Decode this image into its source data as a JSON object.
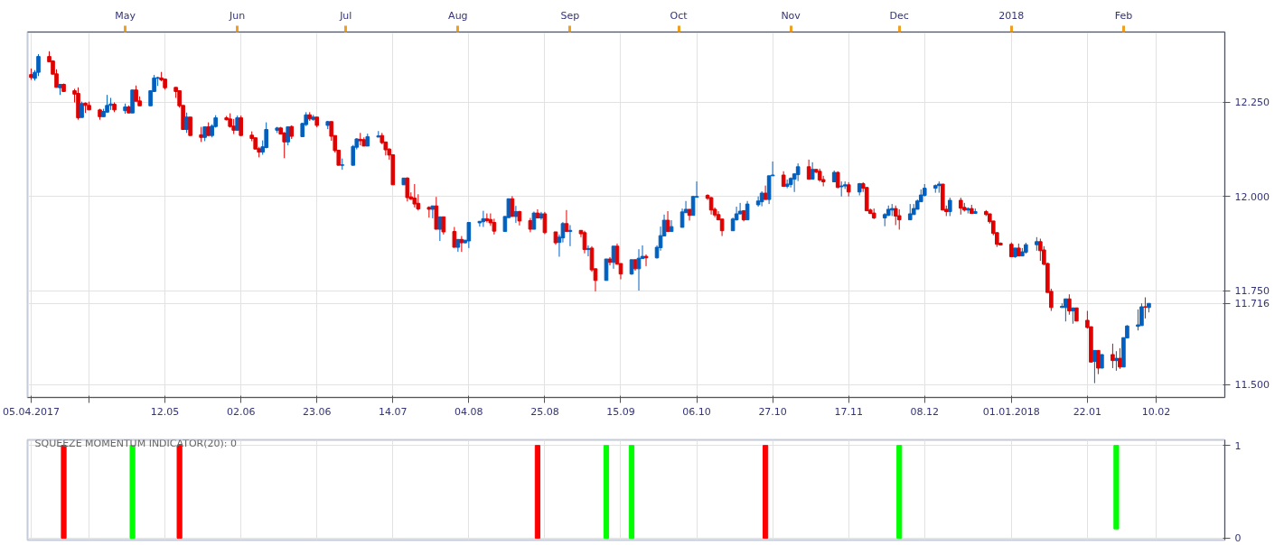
{
  "chart_data": [
    {
      "type": "candlestick",
      "x": [
        "2017-04-05",
        "2017-04-06",
        "2017-04-07",
        "2017-04-10",
        "2017-04-11",
        "2017-04-12",
        "2017-04-13",
        "2017-04-14",
        "2017-04-17",
        "2017-04-18",
        "2017-04-19",
        "2017-04-20",
        "2017-04-21",
        "2017-04-24",
        "2017-04-25",
        "2017-04-26",
        "2017-04-27",
        "2017-04-28",
        "2017-05-01",
        "2017-05-02",
        "2017-05-03",
        "2017-05-04",
        "2017-05-05",
        "2017-05-08",
        "2017-05-09",
        "2017-05-10",
        "2017-05-11",
        "2017-05-12",
        "2017-05-15",
        "2017-05-16",
        "2017-05-17",
        "2017-05-18",
        "2017-05-19",
        "2017-05-22",
        "2017-05-23",
        "2017-05-24",
        "2017-05-25",
        "2017-05-26",
        "2017-05-29",
        "2017-05-30",
        "2017-05-31",
        "2017-06-01",
        "2017-06-02",
        "2017-06-05",
        "2017-06-06",
        "2017-06-07",
        "2017-06-08",
        "2017-06-09",
        "2017-06-12",
        "2017-06-13",
        "2017-06-14",
        "2017-06-15",
        "2017-06-16",
        "2017-06-19",
        "2017-06-20",
        "2017-06-21",
        "2017-06-22",
        "2017-06-23",
        "2017-06-26",
        "2017-06-27",
        "2017-06-28",
        "2017-06-29",
        "2017-06-30",
        "2017-07-03",
        "2017-07-04",
        "2017-07-05",
        "2017-07-06",
        "2017-07-07",
        "2017-07-10",
        "2017-07-11",
        "2017-07-12",
        "2017-07-13",
        "2017-07-14",
        "2017-07-17",
        "2017-07-18",
        "2017-07-19",
        "2017-07-20",
        "2017-07-21",
        "2017-07-24",
        "2017-07-25",
        "2017-07-26",
        "2017-07-27",
        "2017-07-28",
        "2017-07-31",
        "2017-08-01",
        "2017-08-02",
        "2017-08-03",
        "2017-08-04",
        "2017-08-07",
        "2017-08-08",
        "2017-08-09",
        "2017-08-10",
        "2017-08-11",
        "2017-08-14",
        "2017-08-15",
        "2017-08-16",
        "2017-08-17",
        "2017-08-18",
        "2017-08-21",
        "2017-08-22",
        "2017-08-23",
        "2017-08-24",
        "2017-08-25",
        "2017-08-28",
        "2017-08-29",
        "2017-08-30",
        "2017-08-31",
        "2017-09-01",
        "2017-09-04",
        "2017-09-05",
        "2017-09-06",
        "2017-09-07",
        "2017-09-08",
        "2017-09-11",
        "2017-09-12",
        "2017-09-13",
        "2017-09-14",
        "2017-09-15",
        "2017-09-18",
        "2017-09-19",
        "2017-09-20",
        "2017-09-21",
        "2017-09-22",
        "2017-09-25",
        "2017-09-26",
        "2017-09-27",
        "2017-09-28",
        "2017-09-29",
        "2017-10-02",
        "2017-10-03",
        "2017-10-04",
        "2017-10-05",
        "2017-10-06",
        "2017-10-09",
        "2017-10-10",
        "2017-10-11",
        "2017-10-12",
        "2017-10-13",
        "2017-10-16",
        "2017-10-17",
        "2017-10-18",
        "2017-10-19",
        "2017-10-20",
        "2017-10-23",
        "2017-10-24",
        "2017-10-25",
        "2017-10-26",
        "2017-10-27",
        "2017-10-30",
        "2017-10-31",
        "2017-11-01",
        "2017-11-02",
        "2017-11-03",
        "2017-11-06",
        "2017-11-07",
        "2017-11-08",
        "2017-11-09",
        "2017-11-10",
        "2017-11-13",
        "2017-11-14",
        "2017-11-15",
        "2017-11-16",
        "2017-11-17",
        "2017-11-20",
        "2017-11-21",
        "2017-11-22",
        "2017-11-23",
        "2017-11-24",
        "2017-11-27",
        "2017-11-28",
        "2017-11-29",
        "2017-11-30",
        "2017-12-01",
        "2017-12-04",
        "2017-12-05",
        "2017-12-06",
        "2017-12-07",
        "2017-12-08",
        "2017-12-11",
        "2017-12-12",
        "2017-12-13",
        "2017-12-14",
        "2017-12-15",
        "2017-12-18",
        "2017-12-19",
        "2017-12-20",
        "2017-12-21",
        "2017-12-22",
        "2017-12-25",
        "2017-12-26",
        "2017-12-27",
        "2017-12-28",
        "2017-12-29",
        "2018-01-01",
        "2018-01-02",
        "2018-01-03",
        "2018-01-04",
        "2018-01-05",
        "2018-01-08",
        "2018-01-09",
        "2018-01-10",
        "2018-01-11",
        "2018-01-12",
        "2018-01-15",
        "2018-01-16",
        "2018-01-17",
        "2018-01-18",
        "2018-01-19",
        "2018-01-22",
        "2018-01-23",
        "2018-01-24",
        "2018-01-25",
        "2018-01-26",
        "2018-01-29",
        "2018-01-30",
        "2018-01-31",
        "2018-02-01",
        "2018-02-02",
        "2018-02-05",
        "2018-02-06",
        "2018-02-07",
        "2018-02-08"
      ],
      "ohlc": [
        [
          12.324,
          12.34,
          12.31,
          12.316
        ],
        [
          12.314,
          12.336,
          12.308,
          12.33
        ],
        [
          12.33,
          12.378,
          12.32,
          12.372
        ],
        [
          12.372,
          12.386,
          12.358,
          12.358
        ],
        [
          12.36,
          12.362,
          12.325,
          12.325
        ],
        [
          12.326,
          12.338,
          12.29,
          12.29
        ],
        [
          12.289,
          12.298,
          12.27,
          12.298
        ],
        [
          12.298,
          12.3,
          12.279,
          12.279
        ],
        [
          12.281,
          12.286,
          12.25,
          12.272
        ],
        [
          12.274,
          12.29,
          12.204,
          12.209
        ],
        [
          12.21,
          12.252,
          12.21,
          12.247
        ],
        [
          12.248,
          12.25,
          12.222,
          12.242
        ],
        [
          12.242,
          12.252,
          12.23,
          12.23
        ],
        [
          12.23,
          12.233,
          12.204,
          12.212
        ],
        [
          12.212,
          12.233,
          12.212,
          12.226
        ],
        [
          12.224,
          12.27,
          12.224,
          12.242
        ],
        [
          12.242,
          12.262,
          12.23,
          12.246
        ],
        [
          12.245,
          12.25,
          12.224,
          12.23
        ],
        [
          12.228,
          12.247,
          12.22,
          12.238
        ],
        [
          12.238,
          12.242,
          12.222,
          12.222
        ],
        [
          12.222,
          12.283,
          12.222,
          12.283
        ],
        [
          12.283,
          12.295,
          12.253,
          12.253
        ],
        [
          12.254,
          12.266,
          12.241,
          12.241
        ],
        [
          12.241,
          12.281,
          12.241,
          12.281
        ],
        [
          12.279,
          12.323,
          12.278,
          12.315
        ],
        [
          12.314,
          12.318,
          12.294,
          12.316
        ],
        [
          12.315,
          12.331,
          12.306,
          12.31
        ],
        [
          12.312,
          12.312,
          12.284,
          12.289
        ],
        [
          12.29,
          12.29,
          12.262,
          12.279
        ],
        [
          12.281,
          12.281,
          12.236,
          12.241
        ],
        [
          12.242,
          12.242,
          12.178,
          12.178
        ],
        [
          12.178,
          12.223,
          12.169,
          12.211
        ],
        [
          12.211,
          12.211,
          12.162,
          12.162
        ],
        [
          12.164,
          12.185,
          12.145,
          12.157
        ],
        [
          12.157,
          12.185,
          12.147,
          12.185
        ],
        [
          12.185,
          12.197,
          12.162,
          12.162
        ],
        [
          12.162,
          12.192,
          12.157,
          12.187
        ],
        [
          12.186,
          12.216,
          12.183,
          12.209
        ],
        [
          12.209,
          12.214,
          12.202,
          12.204
        ],
        [
          12.206,
          12.221,
          12.183,
          12.186
        ],
        [
          12.187,
          12.206,
          12.166,
          12.176
        ],
        [
          12.176,
          12.215,
          12.176,
          12.209
        ],
        [
          12.209,
          12.215,
          12.162,
          12.162
        ],
        [
          12.163,
          12.173,
          12.147,
          12.154
        ],
        [
          12.156,
          12.156,
          12.126,
          12.126
        ],
        [
          12.127,
          12.132,
          12.104,
          12.118
        ],
        [
          12.118,
          12.149,
          12.111,
          12.132
        ],
        [
          12.13,
          12.197,
          12.128,
          12.178
        ],
        [
          12.176,
          12.185,
          12.169,
          12.182
        ],
        [
          12.182,
          12.185,
          12.166,
          12.166
        ],
        [
          12.169,
          12.171,
          12.102,
          12.145
        ],
        [
          12.145,
          12.185,
          12.136,
          12.185
        ],
        [
          12.186,
          12.189,
          12.153,
          12.16
        ],
        [
          12.159,
          12.196,
          12.159,
          12.194
        ],
        [
          12.191,
          12.224,
          12.187,
          12.217
        ],
        [
          12.217,
          12.224,
          12.201,
          12.206
        ],
        [
          12.205,
          12.217,
          12.201,
          12.211
        ],
        [
          12.211,
          12.211,
          12.184,
          12.189
        ],
        [
          12.189,
          12.201,
          12.179,
          12.199
        ],
        [
          12.199,
          12.2,
          12.148,
          12.16
        ],
        [
          12.162,
          12.162,
          12.117,
          12.122
        ],
        [
          12.123,
          12.123,
          12.083,
          12.083
        ],
        [
          12.083,
          12.101,
          12.071,
          12.084
        ],
        [
          12.083,
          12.137,
          12.083,
          12.133
        ],
        [
          12.131,
          12.155,
          12.125,
          12.153
        ],
        [
          12.152,
          12.169,
          12.136,
          12.148
        ],
        [
          12.151,
          12.157,
          12.134,
          12.134
        ],
        [
          12.134,
          12.167,
          12.134,
          12.159
        ],
        [
          12.158,
          12.174,
          12.157,
          12.161
        ],
        [
          12.162,
          12.169,
          12.139,
          12.143
        ],
        [
          12.145,
          12.145,
          12.109,
          12.124
        ],
        [
          12.126,
          12.128,
          12.098,
          12.11
        ],
        [
          12.111,
          12.111,
          12.031,
          12.031
        ],
        [
          12.031,
          12.049,
          12.031,
          12.049
        ],
        [
          12.049,
          12.051,
          11.987,
          11.997
        ],
        [
          11.999,
          12.011,
          11.991,
          11.993
        ],
        [
          11.996,
          12.033,
          11.971,
          11.98
        ],
        [
          11.982,
          12.006,
          11.963,
          11.967
        ],
        [
          11.971,
          11.974,
          11.944,
          11.966
        ],
        [
          11.966,
          11.975,
          11.942,
          11.975
        ],
        [
          11.975,
          11.999,
          11.913,
          11.913
        ],
        [
          11.913,
          11.946,
          11.882,
          11.946
        ],
        [
          11.946,
          11.946,
          11.899,
          11.906
        ],
        [
          11.907,
          11.919,
          11.865,
          11.865
        ],
        [
          11.865,
          11.886,
          11.853,
          11.886
        ],
        [
          11.886,
          11.895,
          11.853,
          11.877
        ],
        [
          11.877,
          11.884,
          11.875,
          11.884
        ],
        [
          11.882,
          11.931,
          11.863,
          11.931
        ],
        [
          11.93,
          11.935,
          11.92,
          11.934
        ],
        [
          11.933,
          11.962,
          11.919,
          11.941
        ],
        [
          11.941,
          11.955,
          11.931,
          11.936
        ],
        [
          11.939,
          11.955,
          11.922,
          11.93
        ],
        [
          11.931,
          11.941,
          11.899,
          11.908
        ],
        [
          11.907,
          11.948,
          11.907,
          11.947
        ],
        [
          11.944,
          11.994,
          11.944,
          11.994
        ],
        [
          11.994,
          12.001,
          11.947,
          11.947
        ],
        [
          11.947,
          11.975,
          11.93,
          11.96
        ],
        [
          11.96,
          11.962,
          11.923,
          11.935
        ],
        [
          11.936,
          11.943,
          11.905,
          11.913
        ],
        [
          11.913,
          11.96,
          11.913,
          11.956
        ],
        [
          11.956,
          11.966,
          11.943,
          11.943
        ],
        [
          11.943,
          11.959,
          11.938,
          11.954
        ],
        [
          11.954,
          11.959,
          11.9,
          11.904
        ],
        [
          11.906,
          11.906,
          11.872,
          11.877
        ],
        [
          11.878,
          11.899,
          11.84,
          11.892
        ],
        [
          11.89,
          11.932,
          11.878,
          11.928
        ],
        [
          11.928,
          11.964,
          11.907,
          11.907
        ],
        [
          11.907,
          11.924,
          11.868,
          11.91
        ],
        [
          11.91,
          11.91,
          11.892,
          11.901
        ],
        [
          11.904,
          11.909,
          11.849,
          11.859
        ],
        [
          11.859,
          11.87,
          11.841,
          11.862
        ],
        [
          11.863,
          11.868,
          11.8,
          11.805
        ],
        [
          11.808,
          11.808,
          11.748,
          11.777
        ],
        [
          11.777,
          11.834,
          11.777,
          11.834
        ],
        [
          11.834,
          11.839,
          11.817,
          11.825
        ],
        [
          11.825,
          11.868,
          11.808,
          11.868
        ],
        [
          11.868,
          11.875,
          11.82,
          11.82
        ],
        [
          11.822,
          11.822,
          11.78,
          11.794
        ],
        [
          11.794,
          11.832,
          11.792,
          11.832
        ],
        [
          11.832,
          11.832,
          11.803,
          11.808
        ],
        [
          11.808,
          11.86,
          11.75,
          11.836
        ],
        [
          11.835,
          11.87,
          11.835,
          11.841
        ],
        [
          11.841,
          11.846,
          11.815,
          11.837
        ],
        [
          11.837,
          11.87,
          11.835,
          11.865
        ],
        [
          11.864,
          11.92,
          11.856,
          11.896
        ],
        [
          11.895,
          11.952,
          11.895,
          11.937
        ],
        [
          11.937,
          11.961,
          11.907,
          11.907
        ],
        [
          11.907,
          11.937,
          11.907,
          11.92
        ],
        [
          11.918,
          11.968,
          11.918,
          11.959
        ],
        [
          11.957,
          11.988,
          11.957,
          11.966
        ],
        [
          11.966,
          11.966,
          11.936,
          11.95
        ],
        [
          11.95,
          12.002,
          11.95,
          12.0
        ],
        [
          11.998,
          12.04,
          11.998,
          12.0
        ],
        [
          12.003,
          12.006,
          11.991,
          11.995
        ],
        [
          11.997,
          11.999,
          11.952,
          11.964
        ],
        [
          11.966,
          11.971,
          11.945,
          11.951
        ],
        [
          11.952,
          11.961,
          11.938,
          11.938
        ],
        [
          11.94,
          11.94,
          11.895,
          11.909
        ],
        [
          11.909,
          11.944,
          11.909,
          11.94
        ],
        [
          11.938,
          11.973,
          11.936,
          11.954
        ],
        [
          11.954,
          11.983,
          11.952,
          11.961
        ],
        [
          11.962,
          11.964,
          11.934,
          11.938
        ],
        [
          11.938,
          11.988,
          11.938,
          11.98
        ],
        [
          11.978,
          12.0,
          11.973,
          11.988
        ],
        [
          11.986,
          12.014,
          11.974,
          12.009
        ],
        [
          12.009,
          12.029,
          11.992,
          11.992
        ],
        [
          11.992,
          12.055,
          11.98,
          12.055
        ],
        [
          12.055,
          12.093,
          12.055,
          12.057
        ],
        [
          12.057,
          12.067,
          12.027,
          12.027
        ],
        [
          12.027,
          12.045,
          12.022,
          12.033
        ],
        [
          12.032,
          12.051,
          12.024,
          12.048
        ],
        [
          12.046,
          12.062,
          12.012,
          12.06
        ],
        [
          12.058,
          12.088,
          12.041,
          12.079
        ],
        [
          12.079,
          12.098,
          12.046,
          12.046
        ],
        [
          12.046,
          12.091,
          12.046,
          12.072
        ],
        [
          12.072,
          12.072,
          12.062,
          12.065
        ],
        [
          12.067,
          12.074,
          12.039,
          12.044
        ],
        [
          12.045,
          12.055,
          12.027,
          12.039
        ],
        [
          12.039,
          12.069,
          12.039,
          12.064
        ],
        [
          12.064,
          12.067,
          12.022,
          12.024
        ],
        [
          12.026,
          12.04,
          12.0,
          12.028
        ],
        [
          12.028,
          12.04,
          12.02,
          12.031
        ],
        [
          12.031,
          12.038,
          12.0,
          12.012
        ],
        [
          12.012,
          12.036,
          12.003,
          12.034
        ],
        [
          12.034,
          12.038,
          12.012,
          12.022
        ],
        [
          12.024,
          12.024,
          11.962,
          11.962
        ],
        [
          11.964,
          11.968,
          11.955,
          11.955
        ],
        [
          11.956,
          11.968,
          11.94,
          11.943
        ],
        [
          11.943,
          11.956,
          11.921,
          11.952
        ],
        [
          11.95,
          11.976,
          11.948,
          11.966
        ],
        [
          11.964,
          11.98,
          11.948,
          11.968
        ],
        [
          11.968,
          11.976,
          11.924,
          11.948
        ],
        [
          11.949,
          11.966,
          11.912,
          11.938
        ],
        [
          11.938,
          11.98,
          11.938,
          11.954
        ],
        [
          11.952,
          11.98,
          11.952,
          11.968
        ],
        [
          11.966,
          11.992,
          11.966,
          11.988
        ],
        [
          11.986,
          12.019,
          11.986,
          12.004
        ],
        [
          12.003,
          12.033,
          12.0,
          12.022
        ],
        [
          12.022,
          12.032,
          12.01,
          12.029
        ],
        [
          12.029,
          12.04,
          12.01,
          12.033
        ],
        [
          12.033,
          12.033,
          11.964,
          11.964
        ],
        [
          11.966,
          11.976,
          11.948,
          11.96
        ],
        [
          11.96,
          11.997,
          11.948,
          11.99
        ],
        [
          11.99,
          11.997,
          11.952,
          11.969
        ],
        [
          11.971,
          11.983,
          11.96,
          11.964
        ],
        [
          11.964,
          11.971,
          11.955,
          11.968
        ],
        [
          11.968,
          11.978,
          11.955,
          11.955
        ],
        [
          11.955,
          11.968,
          11.955,
          11.96
        ],
        [
          11.96,
          11.964,
          11.948,
          11.952
        ],
        [
          11.954,
          11.954,
          11.928,
          11.933
        ],
        [
          11.935,
          11.935,
          11.897,
          11.902
        ],
        [
          11.904,
          11.904,
          11.866,
          11.873
        ],
        [
          11.876,
          11.878,
          11.871,
          11.871
        ],
        [
          11.873,
          11.878,
          11.84,
          11.84
        ],
        [
          11.84,
          11.863,
          11.837,
          11.863
        ],
        [
          11.863,
          11.875,
          11.842,
          11.842
        ],
        [
          11.842,
          11.863,
          11.842,
          11.853
        ],
        [
          11.852,
          11.877,
          11.848,
          11.872
        ],
        [
          11.872,
          11.892,
          11.856,
          11.88
        ],
        [
          11.88,
          11.888,
          11.829,
          11.856
        ],
        [
          11.858,
          11.868,
          11.817,
          11.82
        ],
        [
          11.822,
          11.824,
          11.745,
          11.745
        ],
        [
          11.748,
          11.755,
          11.696,
          11.705
        ],
        [
          11.705,
          11.716,
          11.705,
          11.708
        ],
        [
          11.705,
          11.728,
          11.668,
          11.728
        ],
        [
          11.728,
          11.74,
          11.686,
          11.696
        ],
        [
          11.696,
          11.704,
          11.662,
          11.704
        ],
        [
          11.704,
          11.704,
          11.669,
          11.669
        ],
        [
          11.671,
          11.696,
          11.649,
          11.652
        ],
        [
          11.654,
          11.654,
          11.56,
          11.56
        ],
        [
          11.562,
          11.591,
          11.504,
          11.591
        ],
        [
          11.591,
          11.591,
          11.528,
          11.544
        ],
        [
          11.544,
          11.58,
          11.544,
          11.58
        ],
        [
          11.58,
          11.609,
          11.544,
          11.564
        ],
        [
          11.564,
          11.589,
          11.537,
          11.57
        ],
        [
          11.57,
          11.597,
          11.542,
          11.547
        ],
        [
          11.547,
          11.625,
          11.547,
          11.625
        ],
        [
          11.624,
          11.658,
          11.623,
          11.656
        ],
        [
          11.655,
          11.7,
          11.644,
          11.659
        ],
        [
          11.657,
          11.716,
          11.657,
          11.707
        ],
        [
          11.707,
          11.732,
          11.676,
          11.706
        ],
        [
          11.705,
          11.716,
          11.692,
          11.716
        ]
      ],
      "colors": [
        "#e00000",
        "#0060c0",
        "#0060c0",
        "#e00000",
        "#e00000",
        "#e00000",
        "#0060c0",
        "#e00000",
        "#e00000",
        "#e00000",
        "#0060c0",
        "#e00000",
        "#e00000",
        "#e00000",
        "#0060c0",
        "#0060c0",
        "#0060c0",
        "#e00000",
        "#0060c0",
        "#e00000",
        "#0060c0",
        "#e00000",
        "#e00000",
        "#0060c0",
        "#0060c0",
        "#0060c0",
        "#e00000",
        "#e00000",
        "#e00000",
        "#e00000",
        "#e00000",
        "#0060c0",
        "#e00000",
        "#e00000",
        "#0060c0",
        "#e00000",
        "#0060c0",
        "#0060c0",
        "#e00000",
        "#e00000",
        "#e00000",
        "#0060c0",
        "#e00000",
        "#e00000",
        "#e00000",
        "#e00000",
        "#0060c0",
        "#0060c0",
        "#0060c0",
        "#e00000",
        "#e00000",
        "#0060c0",
        "#e00000",
        "#0060c0",
        "#0060c0",
        "#e00000",
        "#0060c0",
        "#e00000",
        "#0060c0",
        "#e00000",
        "#e00000",
        "#e00000",
        "#0060c0",
        "#0060c0",
        "#0060c0",
        "#e00000",
        "#e00000",
        "#0060c0",
        "#0060c0",
        "#e00000",
        "#e00000",
        "#e00000",
        "#e00000",
        "#0060c0",
        "#e00000",
        "#e00000",
        "#e00000",
        "#e00000",
        "#e00000",
        "#0060c0",
        "#e00000",
        "#0060c0",
        "#e00000",
        "#e00000",
        "#0060c0",
        "#e00000",
        "#0060c0",
        "#0060c0",
        "#0060c0",
        "#0060c0",
        "#e00000",
        "#e00000",
        "#e00000",
        "#0060c0",
        "#0060c0",
        "#e00000",
        "#0060c0",
        "#e00000",
        "#e00000",
        "#0060c0",
        "#e00000",
        "#0060c0",
        "#e00000",
        "#e00000",
        "#0060c0",
        "#0060c0",
        "#e00000",
        "#0060c0",
        "#e00000",
        "#e00000",
        "#0060c0",
        "#e00000",
        "#e00000",
        "#0060c0",
        "#e00000",
        "#0060c0",
        "#e00000",
        "#e00000",
        "#0060c0",
        "#e00000",
        "#0060c0",
        "#0060c0",
        "#e00000",
        "#0060c0",
        "#0060c0",
        "#0060c0",
        "#e00000",
        "#0060c0",
        "#0060c0",
        "#0060c0",
        "#e00000",
        "#0060c0",
        "#0060c0",
        "#e00000",
        "#e00000",
        "#e00000",
        "#e00000",
        "#e00000",
        "#0060c0",
        "#0060c0",
        "#0060c0",
        "#e00000",
        "#0060c0",
        "#0060c0",
        "#0060c0",
        "#e00000",
        "#0060c0",
        "#0060c0",
        "#e00000",
        "#0060c0",
        "#0060c0",
        "#0060c0",
        "#0060c0",
        "#e00000",
        "#0060c0",
        "#e00000",
        "#e00000",
        "#e00000",
        "#0060c0",
        "#e00000",
        "#0060c0",
        "#0060c0",
        "#e00000",
        "#0060c0",
        "#e00000",
        "#e00000",
        "#e00000",
        "#e00000",
        "#0060c0",
        "#0060c0",
        "#0060c0",
        "#e00000",
        "#e00000",
        "#0060c0",
        "#0060c0",
        "#0060c0",
        "#0060c0",
        "#0060c0",
        "#0060c0",
        "#0060c0",
        "#e00000",
        "#e00000",
        "#0060c0",
        "#e00000",
        "#e00000",
        "#0060c0",
        "#e00000",
        "#0060c0",
        "#e00000",
        "#e00000",
        "#e00000",
        "#e00000",
        "#e00000",
        "#e00000",
        "#0060c0",
        "#e00000",
        "#0060c0",
        "#0060c0",
        "#0060c0",
        "#e00000",
        "#e00000",
        "#e00000",
        "#e00000",
        "#0060c0",
        "#0060c0",
        "#e00000",
        "#0060c0",
        "#e00000",
        "#e00000",
        "#e00000",
        "#0060c0",
        "#e00000",
        "#0060c0",
        "#e00000",
        "#0060c0",
        "#e00000",
        "#0060c0",
        "#0060c0",
        "#0060c0",
        "#0060c0",
        "#e00000",
        "#0060c0"
      ],
      "xlim": [
        "2017-04-04",
        "2018-03-01"
      ],
      "xticks": [
        {
          "value": "2017-04-05",
          "label": "05.04.2017"
        },
        {
          "value": "2017-04-21",
          "label": null
        },
        {
          "value": "2017-05-12",
          "label": "12.05"
        },
        {
          "value": "2017-06-02",
          "label": "02.06"
        },
        {
          "value": "2017-06-23",
          "label": "23.06"
        },
        {
          "value": "2017-07-14",
          "label": "14.07"
        },
        {
          "value": "2017-08-04",
          "label": "04.08"
        },
        {
          "value": "2017-08-25",
          "label": "25.08"
        },
        {
          "value": "2017-09-15",
          "label": "15.09"
        },
        {
          "value": "2017-10-06",
          "label": "06.10"
        },
        {
          "value": "2017-10-27",
          "label": "27.10"
        },
        {
          "value": "2017-11-17",
          "label": "17.11"
        },
        {
          "value": "2017-12-08",
          "label": "08.12"
        },
        {
          "value": "2018-01-01",
          "label": "01.01.2018"
        },
        {
          "value": "2018-01-22",
          "label": "22.01"
        },
        {
          "value": "2018-02-10",
          "label": "10.02"
        }
      ],
      "x2lim": [
        "2017-04-04",
        "2018-03-01"
      ],
      "x2ticks": [
        {
          "value": "2017-05-01",
          "label": "May"
        },
        {
          "value": "2017-06-01",
          "label": "Jun"
        },
        {
          "value": "2017-07-01",
          "label": "Jul"
        },
        {
          "value": "2017-08-01",
          "label": "Aug"
        },
        {
          "value": "2017-09-01",
          "label": "Sep"
        },
        {
          "value": "2017-10-01",
          "label": "Oct"
        },
        {
          "value": "2017-11-01",
          "label": "Nov"
        },
        {
          "value": "2017-12-01",
          "label": "Dec"
        },
        {
          "value": "2018-01-01",
          "label": "2018"
        },
        {
          "value": "2018-02-01",
          "label": "Feb"
        }
      ],
      "ylim": [
        11.466,
        12.437
      ],
      "yticks": [
        {
          "value": 11.5,
          "label": "11.500"
        },
        {
          "value": 11.716,
          "label": "11.716"
        },
        {
          "value": 11.75,
          "label": "11.750"
        },
        {
          "value": 12,
          "label": "12.000"
        },
        {
          "value": 12.25,
          "label": "12.250"
        }
      ],
      "grid": true
    },
    {
      "type": "bar",
      "title": "SQUEEZE MOMENTUM INDICATOR(20): 0",
      "x": [
        "2017-04-14",
        "2017-05-03",
        "2017-05-16",
        "2017-08-23",
        "2017-09-11",
        "2017-09-18",
        "2017-10-25",
        "2017-12-01",
        "2018-01-30"
      ],
      "values": [
        1,
        1,
        1,
        1,
        1,
        1,
        1,
        1,
        0.9
      ],
      "base": [
        0,
        0,
        0,
        0,
        0,
        0,
        0,
        0,
        0.1
      ],
      "colors": [
        "#ff0000",
        "#00ff00",
        "#ff0000",
        "#ff0000",
        "#00ff00",
        "#00ff00",
        "#ff0000",
        "#00ff00",
        "#00ff00"
      ],
      "xlim": [
        "2017-04-04",
        "2018-03-01"
      ],
      "xticks": [
        "2017-04-05",
        "2017-04-21",
        "2017-05-12",
        "2017-06-02",
        "2017-06-23",
        "2017-07-14",
        "2017-08-04",
        "2017-08-25",
        "2017-09-15",
        "2017-10-06",
        "2017-10-27",
        "2017-11-17",
        "2017-12-08",
        "2018-01-01",
        "2018-01-22",
        "2018-02-10"
      ],
      "ylim": [
        -0.02,
        1.06
      ],
      "yticks": [
        0,
        1
      ],
      "grid": true,
      "tick_labels": "y"
    }
  ]
}
